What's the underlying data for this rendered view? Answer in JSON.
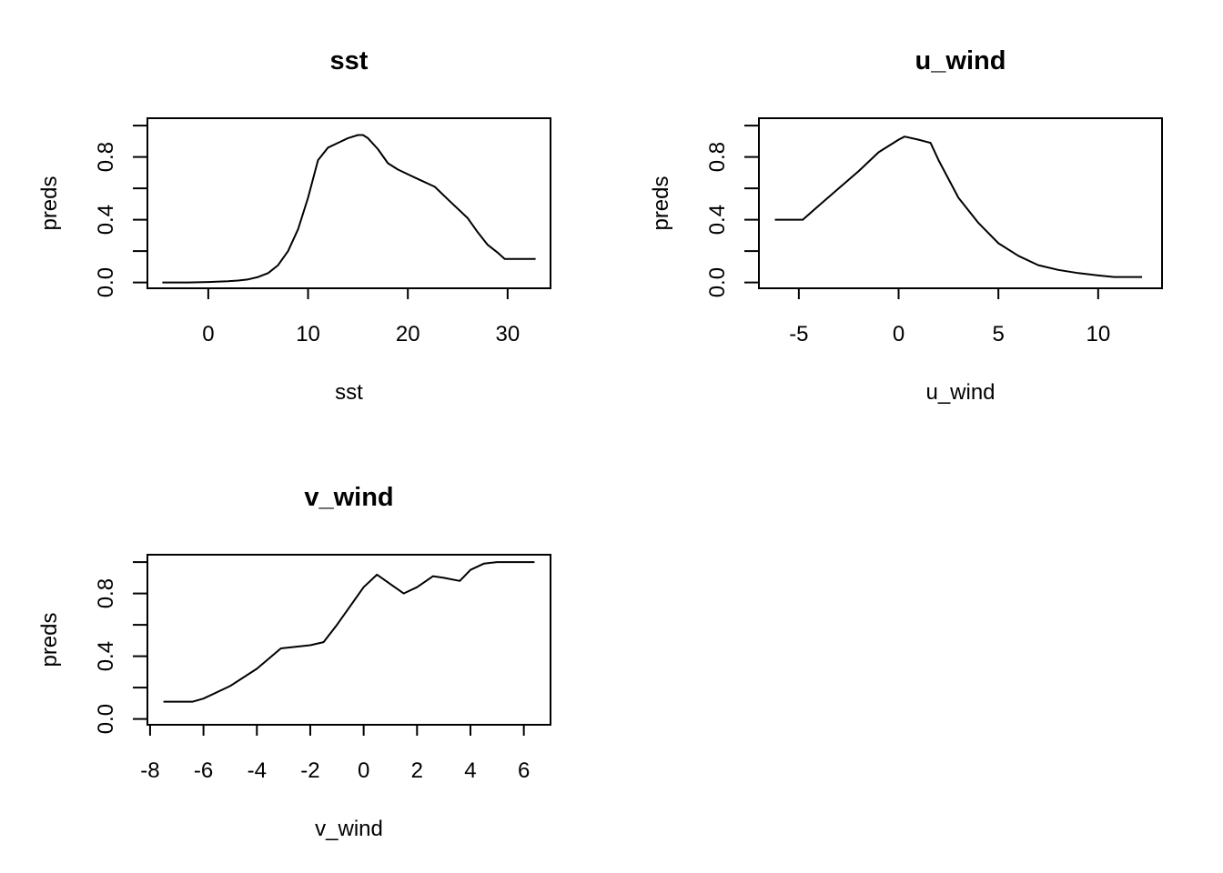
{
  "chart_data": [
    {
      "type": "line",
      "title": "sst",
      "xlabel": "sst",
      "ylabel": "preds",
      "xlim": [
        -6.1,
        34.3
      ],
      "ylim": [
        -0.037,
        1.047
      ],
      "xticks": [
        0,
        10,
        20,
        30
      ],
      "yticks": [
        0.0,
        0.2,
        0.4,
        0.6,
        0.8,
        1.0
      ],
      "yticklabels": [
        "0.0",
        "",
        "0.4",
        "",
        "0.8",
        ""
      ],
      "x": [
        -4.6,
        -2,
        0,
        2,
        3,
        4,
        5,
        6,
        7,
        8,
        9,
        10,
        11,
        12,
        13,
        14,
        15,
        15.5,
        16,
        17,
        18,
        19,
        20,
        21,
        22.7,
        24,
        26,
        27,
        28,
        29,
        29.7,
        31,
        32.8
      ],
      "y": [
        0.0,
        0.0,
        0.003,
        0.008,
        0.012,
        0.02,
        0.035,
        0.06,
        0.11,
        0.2,
        0.34,
        0.54,
        0.78,
        0.86,
        0.89,
        0.92,
        0.94,
        0.94,
        0.92,
        0.85,
        0.76,
        0.72,
        0.69,
        0.66,
        0.61,
        0.53,
        0.41,
        0.32,
        0.24,
        0.19,
        0.15,
        0.15,
        0.15
      ],
      "grid": false
    },
    {
      "type": "line",
      "title": "u_wind",
      "xlabel": "u_wind",
      "ylabel": "preds",
      "xlim": [
        -7.0,
        13.2
      ],
      "ylim": [
        -0.037,
        1.047
      ],
      "xticks": [
        -5,
        0,
        5,
        10
      ],
      "yticks": [
        0.0,
        0.2,
        0.4,
        0.6,
        0.8,
        1.0
      ],
      "yticklabels": [
        "0.0",
        "",
        "0.4",
        "",
        "0.8",
        ""
      ],
      "x": [
        -6.2,
        -4.8,
        -4,
        -3,
        -2,
        -1,
        0,
        0.3,
        1,
        1.6,
        2,
        3,
        4,
        5,
        6,
        7,
        8,
        9,
        10,
        10.8,
        12.2
      ],
      "y": [
        0.4,
        0.4,
        0.49,
        0.6,
        0.71,
        0.83,
        0.91,
        0.93,
        0.91,
        0.89,
        0.78,
        0.54,
        0.38,
        0.25,
        0.17,
        0.11,
        0.08,
        0.06,
        0.045,
        0.035,
        0.035
      ],
      "grid": false
    },
    {
      "type": "line",
      "title": "v_wind",
      "xlabel": "v_wind",
      "ylabel": "preds",
      "xlim": [
        -8.1,
        7.0
      ],
      "ylim": [
        -0.037,
        1.047
      ],
      "xticks": [
        -8,
        -6,
        -4,
        -2,
        0,
        2,
        4,
        6
      ],
      "yticks": [
        0.0,
        0.2,
        0.4,
        0.6,
        0.8,
        1.0
      ],
      "yticklabels": [
        "0.0",
        "",
        "0.4",
        "",
        "0.8",
        ""
      ],
      "x": [
        -7.5,
        -6.4,
        -6,
        -5,
        -4,
        -3.1,
        -2,
        -1.5,
        -1,
        0,
        0.5,
        1,
        1.5,
        2,
        2.6,
        3,
        3.6,
        4,
        4.5,
        5,
        6.4
      ],
      "y": [
        0.11,
        0.11,
        0.13,
        0.21,
        0.32,
        0.45,
        0.47,
        0.49,
        0.6,
        0.84,
        0.92,
        0.86,
        0.8,
        0.84,
        0.91,
        0.9,
        0.88,
        0.95,
        0.99,
        1.0,
        1.0
      ],
      "grid": false
    }
  ]
}
